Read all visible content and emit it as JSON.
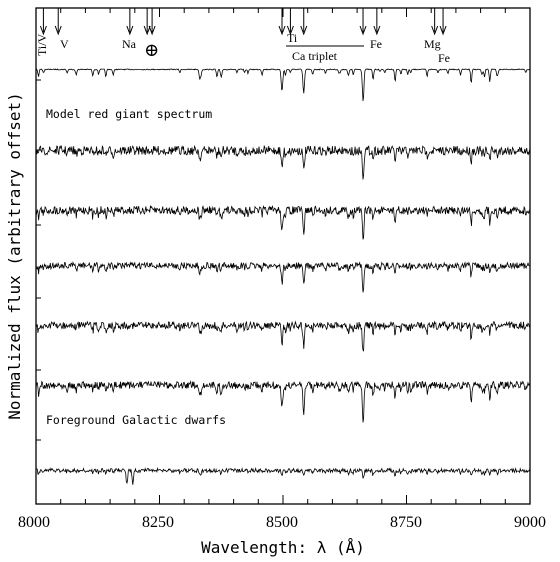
{
  "chart_data": {
    "type": "line",
    "title": "",
    "xlabel": "Wavelength: λ (Å)",
    "ylabel": "Normalized flux (arbitrary offset)",
    "xlim": [
      8000,
      9000
    ],
    "xticks": [
      8000,
      8250,
      8500,
      8750,
      9000
    ],
    "xtick_labels": [
      "8000",
      "8250",
      "8500",
      "8750",
      "9000"
    ],
    "grid": false,
    "annotations": {
      "model": "Model red giant spectrum",
      "dwarfs": "Foreground Galactic dwarfs",
      "ca_triplet": "Ca triplet",
      "telluric": "⊕"
    },
    "features": [
      {
        "label": "Ti/V",
        "arrows": [
          8015,
          8045
        ]
      },
      {
        "label": "V",
        "arrows": [
          8045
        ]
      },
      {
        "label": "Na",
        "arrows": [
          8190
        ]
      },
      {
        "label": "⊕",
        "arrows": [
          8225,
          8235
        ]
      },
      {
        "label": "Ti",
        "arrows": [
          8515
        ]
      },
      {
        "label": "Fe",
        "arrows": [
          8690
        ]
      },
      {
        "label": "Mg",
        "arrows": [
          8807
        ]
      },
      {
        "label": "Fe",
        "arrows": [
          8824
        ]
      }
    ],
    "lines": [
      {
        "name": "Ca II",
        "wavelength": 8498
      },
      {
        "name": "Ca II",
        "wavelength": 8542
      },
      {
        "name": "Ca II",
        "wavelength": 8662
      }
    ],
    "series": [
      {
        "kind": "model",
        "level": 1.0,
        "noise": 0.1,
        "depth": 1.0
      },
      {
        "kind": "observed",
        "level": 0.81,
        "noise": 1.0,
        "depth": 0.8
      },
      {
        "kind": "observed",
        "level": 0.67,
        "noise": 0.9,
        "depth": 1.0
      },
      {
        "kind": "observed",
        "level": 0.54,
        "noise": 0.7,
        "depth": 0.8
      },
      {
        "kind": "observed",
        "level": 0.4,
        "noise": 0.8,
        "depth": 0.9
      },
      {
        "kind": "observed",
        "level": 0.26,
        "noise": 0.8,
        "depth": 1.1
      },
      {
        "kind": "dwarf",
        "level": 0.06,
        "noise": 0.45,
        "depth": 0.45
      }
    ]
  }
}
